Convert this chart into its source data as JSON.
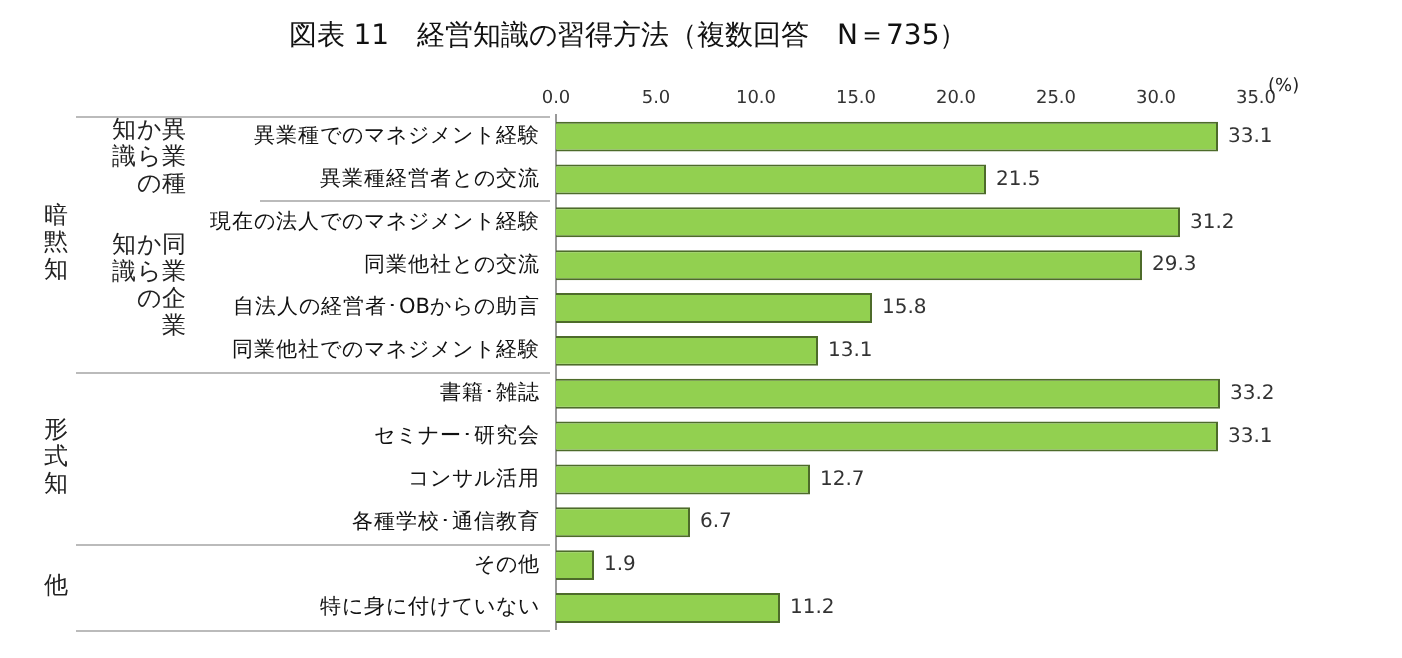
{
  "chart_data": {
    "type": "bar",
    "orientation": "horizontal",
    "title": "図表 11　経営知識の習得方法（複数回答　N＝735）",
    "xlabel": "(%)",
    "categories": [
      "異業種でのマネジメント経験",
      "異業種経営者との交流",
      "現在の法人でのマネジメント経験",
      "同業他社との交流",
      "自法人の経営者･OBからの助言",
      "同業他社でのマネジメント経験",
      "書籍･雑誌",
      "セミナー･研究会",
      "コンサル活用",
      "各種学校･通信教育",
      "その他",
      "特に身に付けていない"
    ],
    "values": [
      33.1,
      21.5,
      31.2,
      29.3,
      15.8,
      13.1,
      33.2,
      33.1,
      12.7,
      6.7,
      1.9,
      11.2
    ],
    "color": "#92d050",
    "xlim": [
      0,
      35
    ],
    "xticks": [
      {
        "value": 0,
        "label": "0.0"
      },
      {
        "value": 5,
        "label": "5.0"
      },
      {
        "value": 10,
        "label": "10.0"
      },
      {
        "value": 15,
        "label": "15.0"
      },
      {
        "value": 20,
        "label": "20.0"
      },
      {
        "value": 25,
        "label": "25.0"
      },
      {
        "value": 30,
        "label": "30.0"
      },
      {
        "value": 35,
        "label": "35.0"
      }
    ],
    "data_labels": true,
    "grid": false,
    "legend": false,
    "annotations": [
      "暗黙知",
      "異業種からの知識",
      "同業企業からの知識",
      "形式知",
      "他"
    ]
  }
}
